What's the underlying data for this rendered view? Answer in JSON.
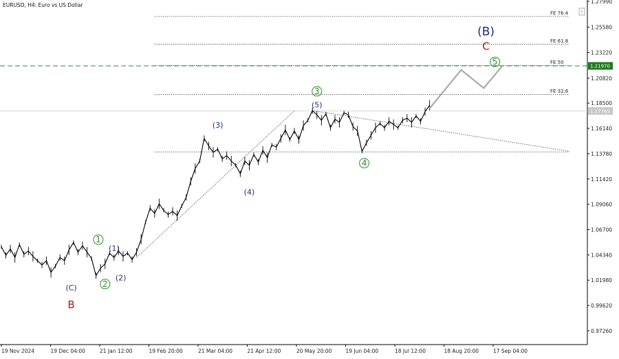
{
  "window": {
    "title": "EURUSD, H4:  Euro vs US Dollar"
  },
  "colors": {
    "background": "#ffffff",
    "candles": "#000000",
    "forecast": "#a9a9a9",
    "green_line": "#2e8b2e",
    "current_box": "#1f7a1f",
    "last_box": "#c8c8c8",
    "wave_green": "#2e8b2e",
    "wave_navy": "#1f2a78",
    "wave_red": "#b01818"
  },
  "chart_data": {
    "type": "line",
    "title": "EURUSD, H4:  Euro vs US Dollar",
    "symbol": "EURUSD",
    "timeframe": "H4",
    "x_tick_labels": [
      "19 Nov 2024",
      "19 Dec 04:00",
      "21 Jan 12:00",
      "19 Feb 20:00",
      "21 Mar 04:00",
      "21 Apr 12:00",
      "20 May 20:00",
      "19 Jun 04:00",
      "18 Jul 12:00",
      "18 Aug 20:00",
      "17 Sep 04:00"
    ],
    "y_tick_labels": [
      "1.27990",
      "1.25580",
      "1.23220",
      "1.20820",
      "1.18500",
      "1.16140",
      "1.13780",
      "1.11420",
      "1.09060",
      "1.06700",
      "1.04340",
      "1.01980",
      "0.99620",
      "0.97260"
    ],
    "ylim": [
      0.961,
      1.2799
    ],
    "grid": false,
    "current_price": 1.2197,
    "current_price_label": "1.21970",
    "last_price": 1.1776,
    "last_price_label": "1.17765",
    "x_categories": [
      "19 Nov 2024",
      "19 Dec 04:00",
      "21 Jan 12:00",
      "19 Feb 20:00",
      "21 Mar 04:00",
      "21 Apr 12:00",
      "20 May 20:00",
      "19 Jun 04:00",
      "18 Jul 12:00",
      "18 Aug 20:00",
      "17 Sep 04:00"
    ],
    "price_path": [
      [
        0,
        1.051
      ],
      [
        2,
        1.043
      ],
      [
        4,
        1.049
      ],
      [
        6,
        1.041
      ],
      [
        8,
        1.053
      ],
      [
        10,
        1.044
      ],
      [
        12,
        1.047
      ],
      [
        14,
        1.042
      ],
      [
        16,
        1.038
      ],
      [
        18,
        1.034
      ],
      [
        20,
        1.038
      ],
      [
        22,
        1.027
      ],
      [
        24,
        1.033
      ],
      [
        26,
        1.041
      ],
      [
        28,
        1.038
      ],
      [
        30,
        1.048
      ],
      [
        32,
        1.055
      ],
      [
        34,
        1.046
      ],
      [
        36,
        1.052
      ],
      [
        38,
        1.046
      ],
      [
        40,
        1.04
      ],
      [
        42,
        1.024
      ],
      [
        44,
        1.031
      ],
      [
        46,
        1.035
      ],
      [
        48,
        1.045
      ],
      [
        50,
        1.041
      ],
      [
        52,
        1.047
      ],
      [
        54,
        1.042
      ],
      [
        56,
        1.045
      ],
      [
        58,
        1.039
      ],
      [
        60,
        1.046
      ],
      [
        62,
        1.058
      ],
      [
        64,
        1.074
      ],
      [
        66,
        1.087
      ],
      [
        68,
        1.082
      ],
      [
        70,
        1.091
      ],
      [
        72,
        1.085
      ],
      [
        74,
        1.081
      ],
      [
        76,
        1.084
      ],
      [
        78,
        1.08
      ],
      [
        80,
        1.089
      ],
      [
        82,
        1.097
      ],
      [
        84,
        1.112
      ],
      [
        86,
        1.124
      ],
      [
        88,
        1.131
      ],
      [
        90,
        1.152
      ],
      [
        92,
        1.145
      ],
      [
        94,
        1.139
      ],
      [
        96,
        1.142
      ],
      [
        98,
        1.133
      ],
      [
        100,
        1.136
      ],
      [
        102,
        1.131
      ],
      [
        104,
        1.127
      ],
      [
        106,
        1.119
      ],
      [
        108,
        1.131
      ],
      [
        110,
        1.127
      ],
      [
        112,
        1.137
      ],
      [
        114,
        1.13
      ],
      [
        116,
        1.141
      ],
      [
        118,
        1.134
      ],
      [
        120,
        1.146
      ],
      [
        122,
        1.144
      ],
      [
        124,
        1.152
      ],
      [
        126,
        1.16
      ],
      [
        128,
        1.151
      ],
      [
        130,
        1.159
      ],
      [
        132,
        1.151
      ],
      [
        134,
        1.164
      ],
      [
        136,
        1.169
      ],
      [
        138,
        1.178
      ],
      [
        140,
        1.174
      ],
      [
        142,
        1.169
      ],
      [
        144,
        1.175
      ],
      [
        146,
        1.162
      ],
      [
        148,
        1.17
      ],
      [
        150,
        1.167
      ],
      [
        152,
        1.176
      ],
      [
        154,
        1.174
      ],
      [
        156,
        1.163
      ],
      [
        158,
        1.159
      ],
      [
        160,
        1.14
      ],
      [
        162,
        1.148
      ],
      [
        164,
        1.155
      ],
      [
        166,
        1.162
      ],
      [
        168,
        1.166
      ],
      [
        170,
        1.162
      ],
      [
        172,
        1.168
      ],
      [
        174,
        1.165
      ],
      [
        176,
        1.162
      ],
      [
        178,
        1.169
      ],
      [
        180,
        1.171
      ],
      [
        182,
        1.167
      ],
      [
        184,
        1.173
      ],
      [
        186,
        1.168
      ],
      [
        188,
        1.177
      ],
      [
        190,
        1.183
      ]
    ],
    "x_max": 260,
    "fibonacci_levels": [
      {
        "label": "FE 76.4",
        "value": 1.2658,
        "x_start": 68,
        "x_end": 260
      },
      {
        "label": "FE 61.8",
        "value": 1.24,
        "x_start": 68,
        "x_end": 260
      },
      {
        "label": "FE 50",
        "value": 1.22,
        "x_start": 68,
        "x_end": 260
      },
      {
        "label": "FE 32.8",
        "value": 1.193,
        "x_start": 68,
        "x_end": 260
      },
      {
        "label": "",
        "value": 1.1395,
        "x_start": 68,
        "x_end": 260
      }
    ],
    "trend_lines": [
      {
        "points": [
          [
            60,
            1.041
          ],
          [
            138,
            1.178
          ]
        ]
      },
      {
        "points": [
          [
            138,
            1.178
          ],
          [
            260,
            1.14
          ]
        ]
      }
    ],
    "forecast_path": [
      [
        190,
        1.18
      ],
      [
        204,
        1.216
      ],
      [
        214,
        1.199
      ],
      [
        222,
        1.219
      ]
    ],
    "wave_labels": [
      {
        "text": "(C)",
        "style": "navy",
        "x": 31,
        "y": 1.013
      },
      {
        "text": "B",
        "style": "red",
        "x": 31,
        "y": 0.9968
      },
      {
        "text": "1",
        "style": "green-circle",
        "x": 43,
        "y": 1.0576
      },
      {
        "text": "(1)",
        "style": "navy",
        "x": 50,
        "y": 1.0496
      },
      {
        "text": "2",
        "style": "green-circle",
        "x": 46,
        "y": 1.0162
      },
      {
        "text": "(2)",
        "style": "navy",
        "x": 53,
        "y": 1.0222
      },
      {
        "text": "(3)",
        "style": "navy",
        "x": 96,
        "y": 1.1645
      },
      {
        "text": "(4)",
        "style": "navy",
        "x": 110,
        "y": 1.1022
      },
      {
        "text": "3",
        "style": "green-circle",
        "x": 140,
        "y": 1.196
      },
      {
        "text": "(5)",
        "style": "navy",
        "x": 140,
        "y": 1.1835
      },
      {
        "text": "4",
        "style": "green-circle",
        "x": 161,
        "y": 1.129
      },
      {
        "text": "5",
        "style": "green-circle",
        "x": 219,
        "y": 1.2235
      },
      {
        "text": "(B)",
        "style": "big",
        "x": 215,
        "y": 1.252
      },
      {
        "text": "C",
        "style": "red",
        "x": 215,
        "y": 1.238
      }
    ]
  }
}
